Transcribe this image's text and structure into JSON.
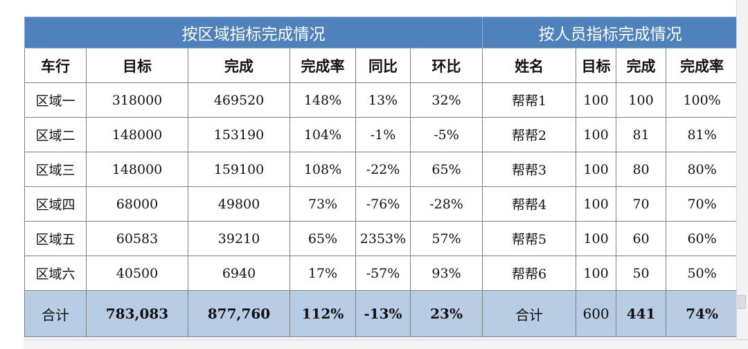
{
  "headers": {
    "region_title": "按区域指标完成情况",
    "person_title": "按人员指标完成情况"
  },
  "columns": {
    "region": [
      "车行",
      "目标",
      "完成",
      "完成率",
      "同比",
      "环比"
    ],
    "person": [
      "姓名",
      "目标",
      "完成",
      "完成率"
    ]
  },
  "rows": [
    {
      "region": "区域一",
      "target": "318000",
      "done": "469520",
      "rate": "148%",
      "yoy": "13%",
      "mom": "32%",
      "name": "帮帮1",
      "p_target": "100",
      "p_done": "100",
      "p_rate": "100%"
    },
    {
      "region": "区域二",
      "target": "148000",
      "done": "153190",
      "rate": "104%",
      "yoy": "-1%",
      "mom": "-5%",
      "name": "帮帮2",
      "p_target": "100",
      "p_done": "81",
      "p_rate": "81%"
    },
    {
      "region": "区域三",
      "target": "148000",
      "done": "159100",
      "rate": "108%",
      "yoy": "-22%",
      "mom": "65%",
      "name": "帮帮3",
      "p_target": "100",
      "p_done": "80",
      "p_rate": "80%"
    },
    {
      "region": "区域四",
      "target": "68000",
      "done": "49800",
      "rate": "73%",
      "yoy": "-76%",
      "mom": "-28%",
      "name": "帮帮4",
      "p_target": "100",
      "p_done": "70",
      "p_rate": "70%"
    },
    {
      "region": "区域五",
      "target": "60583",
      "done": "39210",
      "rate": "65%",
      "yoy": "2353%",
      "mom": "57%",
      "name": "帮帮5",
      "p_target": "100",
      "p_done": "60",
      "p_rate": "60%"
    },
    {
      "region": "区域六",
      "target": "40500",
      "done": "6940",
      "rate": "17%",
      "yoy": "-57%",
      "mom": "93%",
      "name": "帮帮6",
      "p_target": "100",
      "p_done": "50",
      "p_rate": "50%"
    }
  ],
  "total": {
    "label": "合计",
    "target": "783,083",
    "done": "877,760",
    "rate": "112%",
    "yoy": "-13%",
    "mom": "23%",
    "p_label": "合计",
    "p_target": "600",
    "p_done": "441",
    "p_rate": "74%"
  },
  "colors": {
    "header_blue": "#4f81bd",
    "total_row": "#b8cce4"
  }
}
